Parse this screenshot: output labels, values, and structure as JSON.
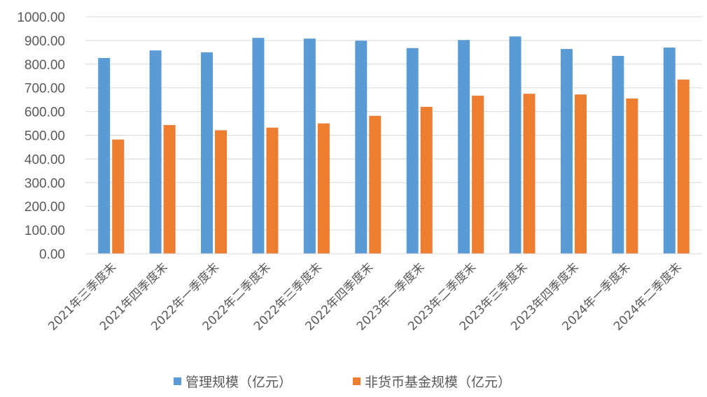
{
  "chart_data": {
    "type": "bar",
    "categories": [
      "2021年三季度末",
      "2021年四季度末",
      "2022年一季度末",
      "2022年二季度末",
      "2022年三季度末",
      "2022年四季度末",
      "2023年一季度末",
      "2023年二季度末",
      "2023年三季度末",
      "2023年四季度末",
      "2024年一季度末",
      "2024年二季度末"
    ],
    "series": [
      {
        "name": "管理规模（亿元）",
        "color": "#5B9BD5",
        "values": [
          826,
          858,
          850,
          911,
          908,
          899,
          868,
          902,
          917,
          864,
          835,
          870
        ]
      },
      {
        "name": "非货币基金规模（亿元）",
        "color": "#ED7D31",
        "values": [
          482,
          543,
          521,
          532,
          550,
          582,
          620,
          667,
          675,
          672,
          655,
          735
        ]
      }
    ],
    "yticks": [
      "0.00",
      "100.00",
      "200.00",
      "300.00",
      "400.00",
      "500.00",
      "600.00",
      "700.00",
      "800.00",
      "900.00",
      "1000.00"
    ],
    "ylim": [
      0,
      1000
    ],
    "grid": true,
    "legend_position": "bottom"
  }
}
